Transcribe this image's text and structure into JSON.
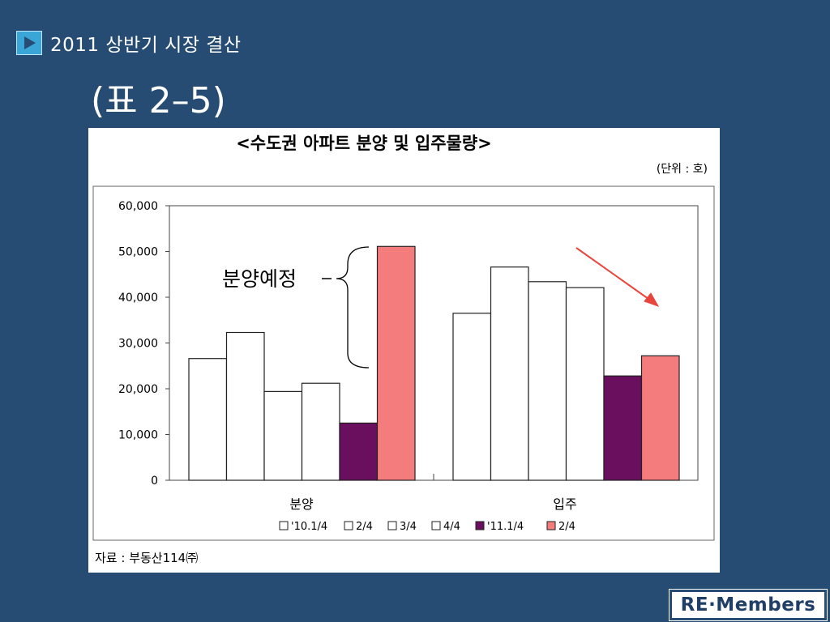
{
  "slide": {
    "header": "2011 상반기 시장 결산",
    "subtitle": "(표 2–5)"
  },
  "brand": {
    "logo": "RE·Members",
    "icon": "play-icon"
  },
  "colors": {
    "background": "#274c73",
    "accent": "#3aa6d8",
    "purple": "#6a0f5e",
    "salmon": "#f47c7c"
  },
  "chart_data": {
    "type": "bar",
    "title": "<수도권 아파트 분양 및 입주물량>",
    "unit_note": "(단위 : 호)",
    "source": "자료 : 부동산114㈜",
    "categories": [
      "분양",
      "입주"
    ],
    "series": [
      {
        "name": "'10.1/4",
        "color": "#ffffff",
        "values": [
          26600,
          36500
        ]
      },
      {
        "name": "2/4",
        "color": "#ffffff",
        "values": [
          32300,
          46600
        ]
      },
      {
        "name": "3/4",
        "color": "#ffffff",
        "values": [
          19400,
          43400
        ]
      },
      {
        "name": "4/4",
        "color": "#ffffff",
        "values": [
          21200,
          42100
        ]
      },
      {
        "name": "'11.1/4",
        "color": "#6a0f5e",
        "values": [
          12500,
          22800
        ]
      },
      {
        "name": "2/4",
        "color": "#f47c7c",
        "values": [
          51100,
          27200
        ]
      }
    ],
    "ylim": [
      0,
      60000
    ],
    "yticks": [
      "0",
      "10,000",
      "20,000",
      "30,000",
      "40,000",
      "50,000",
      "60,000"
    ],
    "annotation": "분양예정",
    "grid": false,
    "legend": "bottom"
  }
}
